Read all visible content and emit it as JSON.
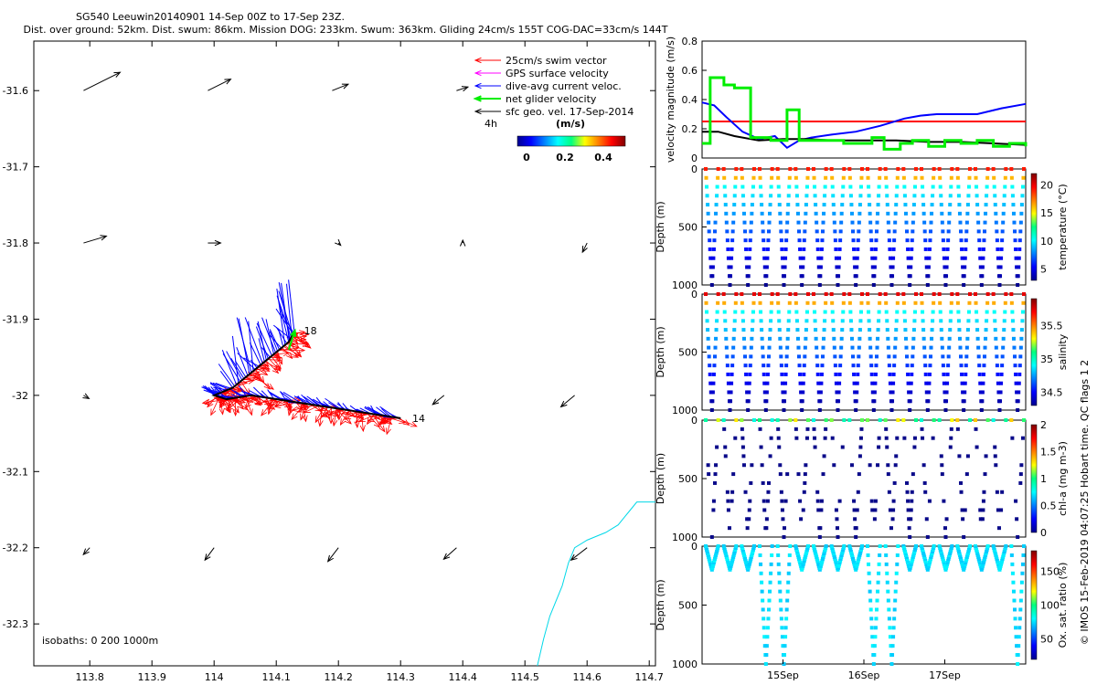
{
  "header": {
    "title_line1": "SG540 Leeuwin20140901 14-Sep 00Z to 17-Sep 23Z.",
    "title_line2": "Dist. over ground: 52km. Dist. swum: 86km. Mission DOG: 233km. Swum: 363km. Gliding 24cm/s 155T COG-DAC=33cm/s 144T"
  },
  "colors": {
    "swim": "#ff0000",
    "gps": "#ff00ff",
    "dac": "#0000ff",
    "net": "#00ee00",
    "sfc": "#000000",
    "coast": "#00d8e8"
  },
  "chart_data": [
    {
      "type": "scatter",
      "panel": "map",
      "x_ticks": [
        "113.8",
        "113.9",
        "114",
        "114.1",
        "114.2",
        "114.3",
        "114.4",
        "114.5",
        "114.6",
        "114.7"
      ],
      "y_ticks": [
        "-31.6",
        "-31.7",
        "-31.8",
        "-31.9",
        "-32",
        "-32.1",
        "-32.2",
        "-32.3"
      ],
      "xlim": [
        113.71,
        114.71
      ],
      "ylim": [
        -32.355,
        -31.535
      ],
      "legend": {
        "items": [
          {
            "label": "25cm/s swim vector",
            "color": "#ff0000"
          },
          {
            "label": "GPS surface velocity",
            "color": "#ff00ff"
          },
          {
            "label": "dive-avg current veloc.",
            "color": "#0000ff"
          },
          {
            "label": "net glider velocity",
            "color": "#00ee00"
          },
          {
            "label": "sfc geo. vel. 17-Sep-2014",
            "color": "#000000"
          }
        ],
        "note": "4h",
        "colorbar_title": "(m/s)",
        "colorbar_ticks": [
          "0",
          "0.2",
          "0.4"
        ],
        "placement": "top-right"
      },
      "track_labels": {
        "start": "14",
        "end": "18"
      },
      "isobaths_label": "isobaths: 0   200  1000m",
      "track": {
        "x": [
          114.3,
          114.26,
          114.22,
          114.18,
          114.14,
          114.1,
          114.06,
          114.02,
          114.0,
          114.03,
          114.06,
          114.09,
          114.12,
          114.13
        ],
        "y": [
          -32.03,
          -32.025,
          -32.02,
          -32.015,
          -32.01,
          -32.005,
          -32.0,
          -32.005,
          -32.0,
          -31.99,
          -31.97,
          -31.95,
          -31.93,
          -31.915
        ]
      },
      "sfc_vectors": [
        {
          "lon": 113.79,
          "lat": -31.6,
          "u": 0.08,
          "v": 0.04
        },
        {
          "lon": 113.99,
          "lat": -31.6,
          "u": 0.05,
          "v": 0.025
        },
        {
          "lon": 114.19,
          "lat": -31.6,
          "u": 0.035,
          "v": 0.014
        },
        {
          "lon": 114.39,
          "lat": -31.6,
          "u": 0.025,
          "v": 0.008
        },
        {
          "lon": 113.79,
          "lat": -31.8,
          "u": 0.05,
          "v": 0.015
        },
        {
          "lon": 113.99,
          "lat": -31.8,
          "u": 0.028,
          "v": 0.0
        },
        {
          "lon": 114.2,
          "lat": -31.8,
          "u": 0.005,
          "v": -0.005
        },
        {
          "lon": 114.4,
          "lat": -31.8,
          "u": 0.0,
          "v": 0.006
        },
        {
          "lon": 114.6,
          "lat": -31.8,
          "u": -0.01,
          "v": -0.02
        },
        {
          "lon": 113.79,
          "lat": -32.0,
          "u": 0.012,
          "v": -0.007
        },
        {
          "lon": 114.37,
          "lat": -32.0,
          "u": -0.025,
          "v": -0.02
        },
        {
          "lon": 114.58,
          "lat": -32.0,
          "u": -0.03,
          "v": -0.025
        },
        {
          "lon": 113.8,
          "lat": -32.2,
          "u": -0.014,
          "v": -0.015
        },
        {
          "lon": 114.0,
          "lat": -32.2,
          "u": -0.02,
          "v": -0.027
        },
        {
          "lon": 114.2,
          "lat": -32.2,
          "u": -0.023,
          "v": -0.03
        },
        {
          "lon": 114.39,
          "lat": -32.2,
          "u": -0.028,
          "v": -0.025
        },
        {
          "lon": 114.6,
          "lat": -32.2,
          "u": -0.035,
          "v": -0.027
        }
      ],
      "coastline": {
        "x": [
          114.52,
          114.53,
          114.54,
          114.55,
          114.56,
          114.57,
          114.58,
          114.6,
          114.63,
          114.65,
          114.66,
          114.67,
          114.68,
          114.7,
          114.71
        ],
        "y": [
          -32.355,
          -32.32,
          -32.29,
          -32.27,
          -32.25,
          -32.22,
          -32.2,
          -32.19,
          -32.18,
          -32.17,
          -32.16,
          -32.15,
          -32.14,
          -32.14,
          -32.14
        ]
      }
    },
    {
      "type": "line",
      "panel": "velocity",
      "ylabel": "velocity magnitude (m/s)",
      "ylim": [
        0,
        0.8
      ],
      "y_ticks": [
        "0",
        "0.2",
        "0.4",
        "0.6",
        "0.8"
      ],
      "xlim": [
        14.0,
        18.0
      ],
      "series": [
        {
          "color": "#ff0000",
          "step": false,
          "x": [
            14.0,
            18.0
          ],
          "y": [
            0.25,
            0.25
          ]
        },
        {
          "color": "#0000ff",
          "step": false,
          "x": [
            14.0,
            14.15,
            14.3,
            14.5,
            14.7,
            14.9,
            15.05,
            15.2,
            15.35,
            15.6,
            15.9,
            16.2,
            16.5,
            16.7,
            16.9,
            17.1,
            17.4,
            17.7,
            18.0
          ],
          "y": [
            0.38,
            0.36,
            0.28,
            0.18,
            0.13,
            0.15,
            0.07,
            0.12,
            0.14,
            0.16,
            0.18,
            0.22,
            0.27,
            0.29,
            0.3,
            0.3,
            0.3,
            0.34,
            0.37
          ]
        },
        {
          "color": "#000000",
          "step": false,
          "x": [
            14.0,
            14.2,
            14.4,
            14.7,
            15.0,
            15.3,
            15.6,
            16.0,
            16.4,
            16.8,
            17.2,
            17.6,
            18.0
          ],
          "y": [
            0.18,
            0.18,
            0.15,
            0.12,
            0.13,
            0.13,
            0.12,
            0.12,
            0.12,
            0.11,
            0.11,
            0.1,
            0.09
          ]
        },
        {
          "color": "#00ee00",
          "step": true,
          "x": [
            14.0,
            14.1,
            14.27,
            14.4,
            14.6,
            14.85,
            15.05,
            15.2,
            15.4,
            15.6,
            15.75,
            15.95,
            16.1,
            16.25,
            16.45,
            16.6,
            16.8,
            17.0,
            17.2,
            17.4,
            17.6,
            17.8,
            18.0
          ],
          "y": [
            0.1,
            0.55,
            0.5,
            0.48,
            0.14,
            0.12,
            0.33,
            0.12,
            0.12,
            0.12,
            0.1,
            0.1,
            0.14,
            0.06,
            0.1,
            0.12,
            0.08,
            0.12,
            0.1,
            0.12,
            0.08,
            0.1,
            0.08
          ]
        }
      ]
    },
    {
      "type": "scatter",
      "panel": "temperature",
      "ylabel": "Depth (m)",
      "y_ticks": [
        "0",
        "500",
        "1000"
      ],
      "ylim": [
        1000,
        0
      ],
      "dives": 18,
      "colorbar": {
        "label": "temperature (°C)",
        "min": 3,
        "max": 22,
        "ticks": [
          "5",
          "10",
          "15",
          "20"
        ]
      }
    },
    {
      "type": "scatter",
      "panel": "salinity",
      "ylabel": "Depth (m)",
      "y_ticks": [
        "0",
        "500",
        "1000"
      ],
      "ylim": [
        1000,
        0
      ],
      "dives": 18,
      "colorbar": {
        "label": "salinity",
        "min": 34.3,
        "max": 35.9,
        "ticks": [
          "34.5",
          "35",
          "35.5"
        ]
      }
    },
    {
      "type": "scatter",
      "panel": "chl",
      "ylabel": "Depth (m)",
      "y_ticks": [
        "0",
        "500",
        "1000"
      ],
      "ylim": [
        1000,
        0
      ],
      "dives": 18,
      "colorbar": {
        "label": "chl-a (mg m-3)",
        "min": 0,
        "max": 2,
        "ticks": [
          "0",
          "0.5",
          "1",
          "1.5",
          "2"
        ]
      }
    },
    {
      "type": "scatter",
      "panel": "oxygen",
      "ylabel": "Depth (m)",
      "y_ticks": [
        "0",
        "500",
        "1000"
      ],
      "ylim": [
        1000,
        0
      ],
      "dives": 18,
      "deep_dives": [
        3,
        4,
        9,
        10,
        17
      ],
      "colorbar": {
        "label": "Ox. sat. ratio (%)",
        "min": 20,
        "max": 180,
        "ticks": [
          "50",
          "100",
          "150"
        ]
      },
      "x_ticks": [
        "15Sep",
        "16Sep",
        "17Sep"
      ]
    }
  ],
  "footer_side": "© IMOS 15-Feb-2019 04:07:25 Hobart time. QC flags 1  2"
}
